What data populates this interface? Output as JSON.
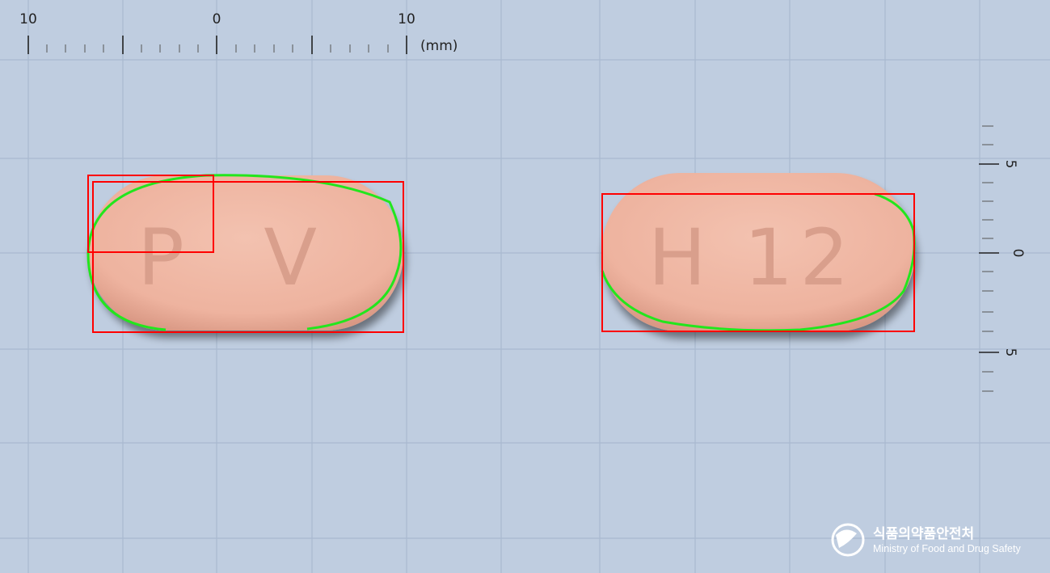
{
  "top_ruler": {
    "labels": [
      "10",
      "0",
      "10"
    ],
    "unit": "(mm)"
  },
  "side_ruler": {
    "labels": [
      "5",
      "0",
      "5"
    ]
  },
  "tablet_left": {
    "imprint": "P V"
  },
  "tablet_right": {
    "imprint": "H 12"
  },
  "logo": {
    "korean": "식품의약품안전처",
    "english": "Ministry of Food and Drug Safety"
  },
  "colors": {
    "background": "#bfcde0",
    "tablet": "#f0b7a4",
    "bbox": "#ff0000",
    "contour": "#22e61d"
  }
}
